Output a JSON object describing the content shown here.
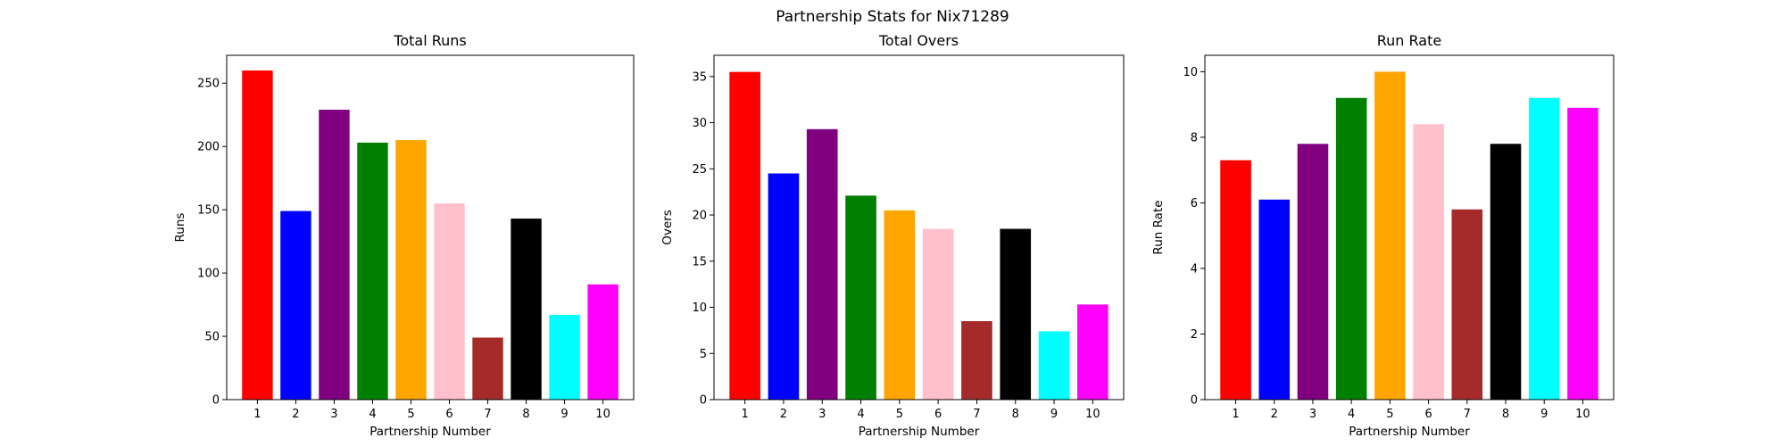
{
  "figure": {
    "title": "Partnership Stats for Nix71289"
  },
  "chart_data": [
    {
      "type": "bar",
      "title": "Total Runs",
      "xlabel": "Partnership Number",
      "ylabel": "Runs",
      "categories": [
        "1",
        "2",
        "3",
        "4",
        "5",
        "6",
        "7",
        "8",
        "9",
        "10"
      ],
      "values": [
        260,
        149,
        229,
        203,
        205,
        155,
        49,
        143,
        67,
        91
      ],
      "colors": [
        "#ff0000",
        "#0000ff",
        "#800080",
        "#008000",
        "#ffa500",
        "#ffc0cb",
        "#a52a2a",
        "#000000",
        "#00ffff",
        "#ff00ff"
      ],
      "ylim": [
        0,
        272
      ],
      "yticks": [
        0,
        50,
        100,
        150,
        200,
        250
      ],
      "grid": false
    },
    {
      "type": "bar",
      "title": "Total Overs",
      "xlabel": "Partnership Number",
      "ylabel": "Overs",
      "categories": [
        "1",
        "2",
        "3",
        "4",
        "5",
        "6",
        "7",
        "8",
        "9",
        "10"
      ],
      "values": [
        35.5,
        24.5,
        29.3,
        22.1,
        20.5,
        18.5,
        8.5,
        18.5,
        7.4,
        10.3
      ],
      "colors": [
        "#ff0000",
        "#0000ff",
        "#800080",
        "#008000",
        "#ffa500",
        "#ffc0cb",
        "#a52a2a",
        "#000000",
        "#00ffff",
        "#ff00ff"
      ],
      "ylim": [
        0,
        37.3
      ],
      "yticks": [
        0,
        5,
        10,
        15,
        20,
        25,
        30,
        35
      ],
      "grid": false
    },
    {
      "type": "bar",
      "title": "Run Rate",
      "xlabel": "Partnership Number",
      "ylabel": "Run Rate",
      "categories": [
        "1",
        "2",
        "3",
        "4",
        "5",
        "6",
        "7",
        "8",
        "9",
        "10"
      ],
      "values": [
        7.3,
        6.1,
        7.8,
        9.2,
        10.0,
        8.4,
        5.8,
        7.8,
        9.2,
        8.9
      ],
      "colors": [
        "#ff0000",
        "#0000ff",
        "#800080",
        "#008000",
        "#ffa500",
        "#ffc0cb",
        "#a52a2a",
        "#000000",
        "#00ffff",
        "#ff00ff"
      ],
      "ylim": [
        0,
        10.5
      ],
      "yticks": [
        0,
        2,
        4,
        6,
        8,
        10
      ],
      "grid": false
    }
  ]
}
